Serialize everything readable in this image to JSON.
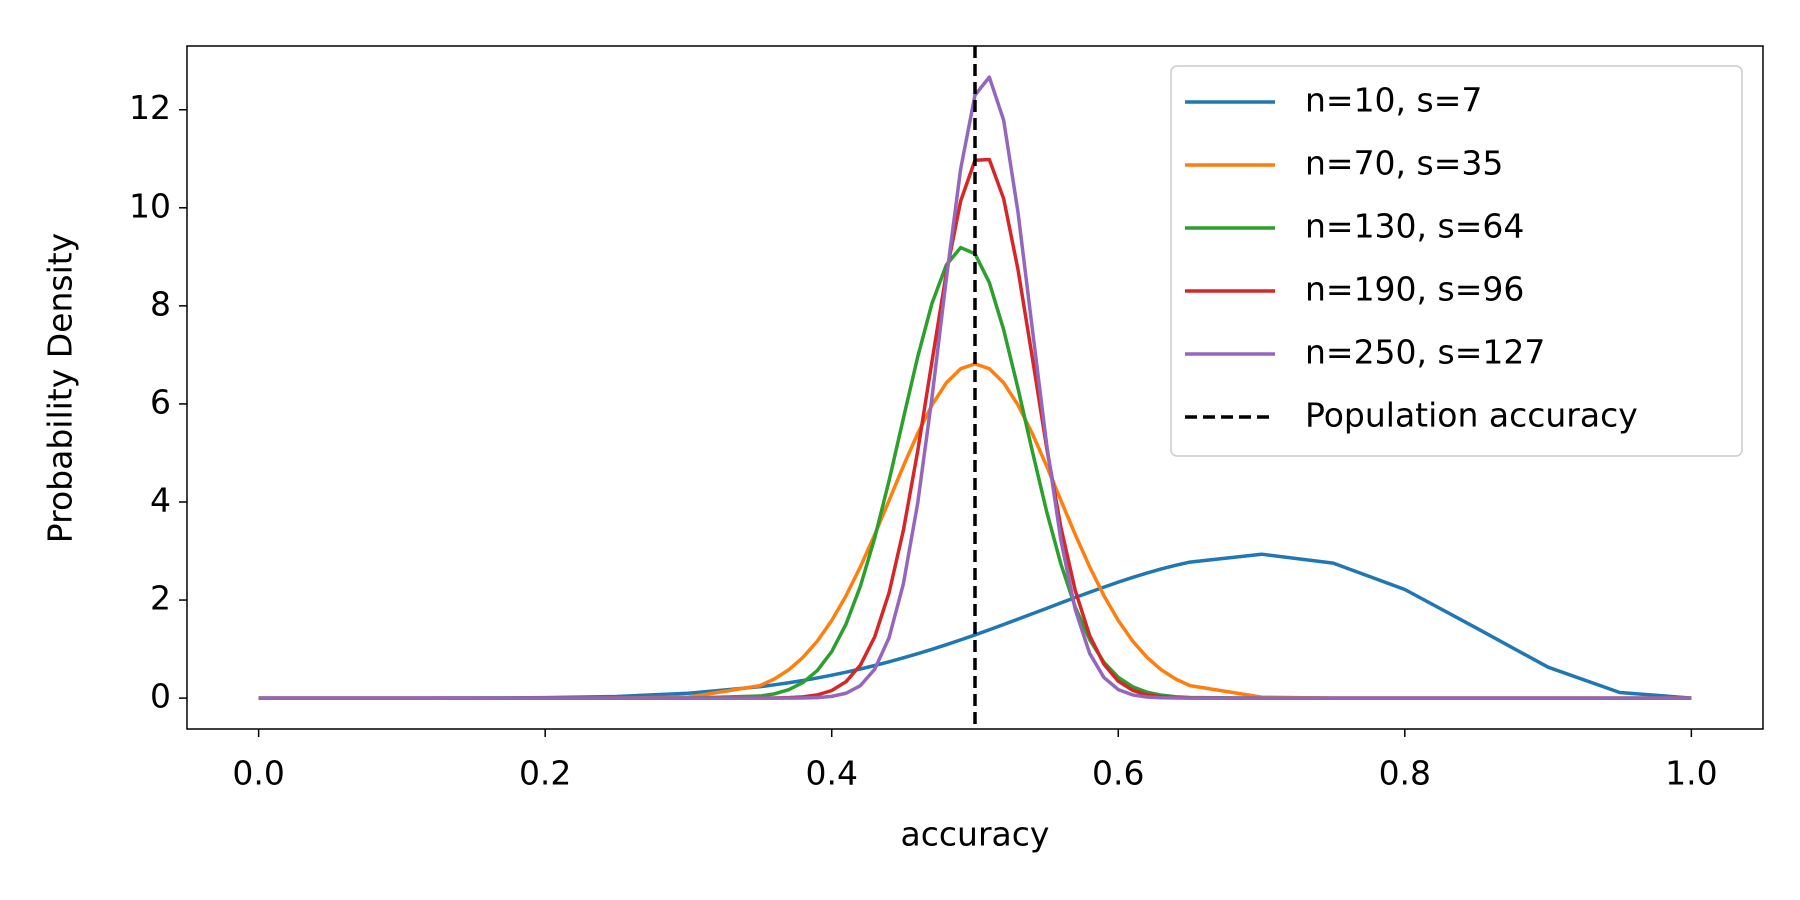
{
  "chart_data": {
    "type": "line",
    "xlabel": "accuracy",
    "ylabel": "Probability Density",
    "xlim": [
      -0.05,
      1.05
    ],
    "ylim": [
      -0.63,
      13.3
    ],
    "xticks": [
      {
        "value": 0,
        "label": "0.0"
      },
      0.2,
      0.4,
      0.6,
      0.8,
      {
        "value": 1,
        "label": "1.0"
      }
    ],
    "yticks": [
      0,
      2,
      4,
      6,
      8,
      10,
      12
    ],
    "grid": false,
    "legend": "upper right",
    "x": [
      0,
      0.05,
      0.1,
      0.15,
      0.2,
      0.25,
      0.3,
      0.35,
      0.36,
      0.37,
      0.38,
      0.39,
      0.4,
      0.41,
      0.42,
      0.43,
      0.44,
      0.45,
      0.46,
      0.47,
      0.48,
      0.49,
      0.5,
      0.51,
      0.52,
      0.53,
      0.54,
      0.55,
      0.56,
      0.57,
      0.58,
      0.59,
      0.6,
      0.61,
      0.62,
      0.63,
      0.64,
      0.65,
      0.7,
      0.75,
      0.8,
      0.85,
      0.9,
      0.95,
      1
    ],
    "series": [
      {
        "name": "n=10, s=7",
        "color": "#1f77b4",
        "values": [
          0,
          0,
          0.0001,
          0.0014,
          0.0087,
          0.034,
          0.099,
          0.233,
          0.271,
          0.313,
          0.36,
          0.411,
          0.467,
          0.528,
          0.594,
          0.665,
          0.74,
          0.821,
          0.906,
          0.996,
          1.09,
          1.188,
          1.289,
          1.394,
          1.501,
          1.61,
          1.72,
          1.831,
          1.942,
          2.052,
          2.159,
          2.264,
          2.365,
          2.461,
          2.551,
          2.634,
          2.709,
          2.774,
          2.935,
          2.753,
          2.215,
          1.428,
          0.631,
          0.115,
          0
        ]
      },
      {
        "name": "n=70, s=35",
        "color": "#ff7f0e",
        "values": [
          0,
          0,
          0,
          0,
          0,
          0.0007,
          0.02,
          0.255,
          0.39,
          0.578,
          0.833,
          1.165,
          1.583,
          2.089,
          2.678,
          3.334,
          4.03,
          4.732,
          5.397,
          5.978,
          6.431,
          6.718,
          6.817,
          6.718,
          6.431,
          5.978,
          5.397,
          4.732,
          4.03,
          3.334,
          2.678,
          2.089,
          1.583,
          1.165,
          0.833,
          0.578,
          0.39,
          0.255,
          0.02,
          0.0007,
          0,
          0,
          0,
          0,
          0
        ]
      },
      {
        "name": "n=130, s=64",
        "color": "#2ca02c",
        "values": [
          0,
          0,
          0,
          0,
          0,
          0,
          0.0005,
          0.042,
          0.087,
          0.171,
          0.319,
          0.565,
          0.949,
          1.511,
          2.281,
          3.266,
          4.432,
          5.704,
          6.959,
          8.053,
          8.834,
          9.189,
          9.062,
          8.475,
          7.514,
          6.318,
          5.036,
          3.806,
          2.728,
          1.854,
          1.195,
          0.73,
          0.423,
          0.232,
          0.121,
          0.06,
          0.028,
          0.012,
          0,
          0,
          0,
          0,
          0,
          0,
          0
        ]
      },
      {
        "name": "n=190, s=96",
        "color": "#d62728",
        "values": [
          0,
          0,
          0,
          0,
          0,
          0,
          0,
          0.001,
          0.003,
          0.01,
          0.026,
          0.066,
          0.155,
          0.335,
          0.672,
          1.249,
          2.147,
          3.42,
          5.037,
          6.871,
          8.674,
          10.139,
          10.97,
          10.986,
          10.186,
          8.742,
          6.945,
          5.108,
          3.476,
          2.191,
          1.278,
          0.691,
          0.345,
          0.16,
          0.068,
          0.027,
          0.01,
          0.003,
          0,
          0,
          0,
          0,
          0,
          0,
          0
        ]
      },
      {
        "name": "n=250, s=127",
        "color": "#9467bd",
        "values": [
          0,
          0,
          0,
          0,
          0,
          0,
          0,
          0,
          0.0002,
          0.0008,
          0.003,
          0.011,
          0.035,
          0.099,
          0.254,
          0.589,
          1.231,
          2.328,
          3.975,
          6.136,
          8.56,
          10.793,
          12.298,
          12.665,
          11.787,
          9.913,
          7.534,
          5.176,
          3.213,
          1.802,
          0.914,
          0.419,
          0.174,
          0.065,
          0.022,
          0.007,
          0.002,
          0,
          0,
          0,
          0,
          0,
          0,
          0,
          0
        ]
      }
    ],
    "vlines": [
      {
        "name": "Population accuracy",
        "x": 0.5,
        "color": "#000000",
        "dash": true
      }
    ]
  }
}
